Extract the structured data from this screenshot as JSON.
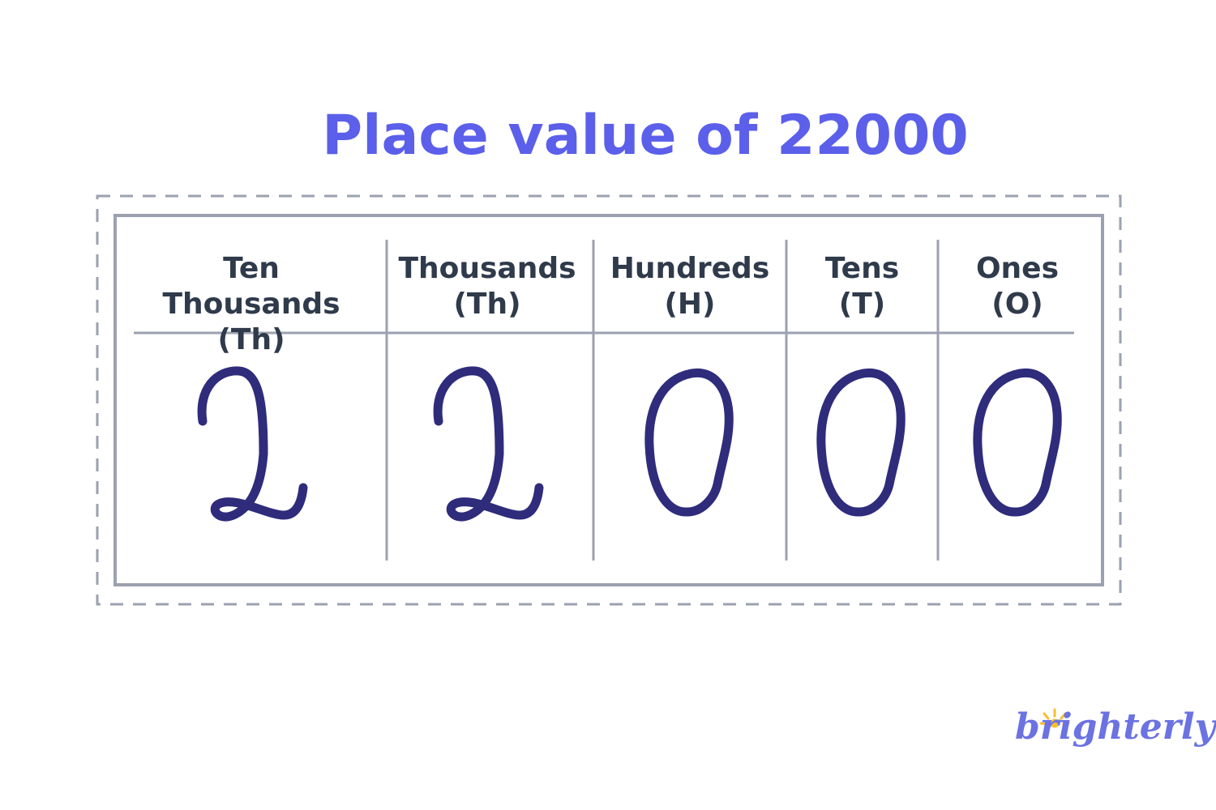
{
  "title": "Place value of 22000",
  "columns": [
    {
      "name": "Ten Thousands",
      "abbr": "(Th)",
      "digit": "2"
    },
    {
      "name": "Thousands",
      "abbr": "(Th)",
      "digit": "2"
    },
    {
      "name": "Hundreds",
      "abbr": "(H)",
      "digit": "0"
    },
    {
      "name": "Tens",
      "abbr": "(T)",
      "digit": "0"
    },
    {
      "name": "Ones",
      "abbr": "(O)",
      "digit": "0"
    }
  ],
  "logo": "brighterly",
  "colors": {
    "title": "#5B5FEA",
    "header_text": "#2F3A4B",
    "lines": "#9CA1B0",
    "digits": "#2F2C7C",
    "logo": "#6B72E2",
    "logo_sun": "#F5C030"
  }
}
